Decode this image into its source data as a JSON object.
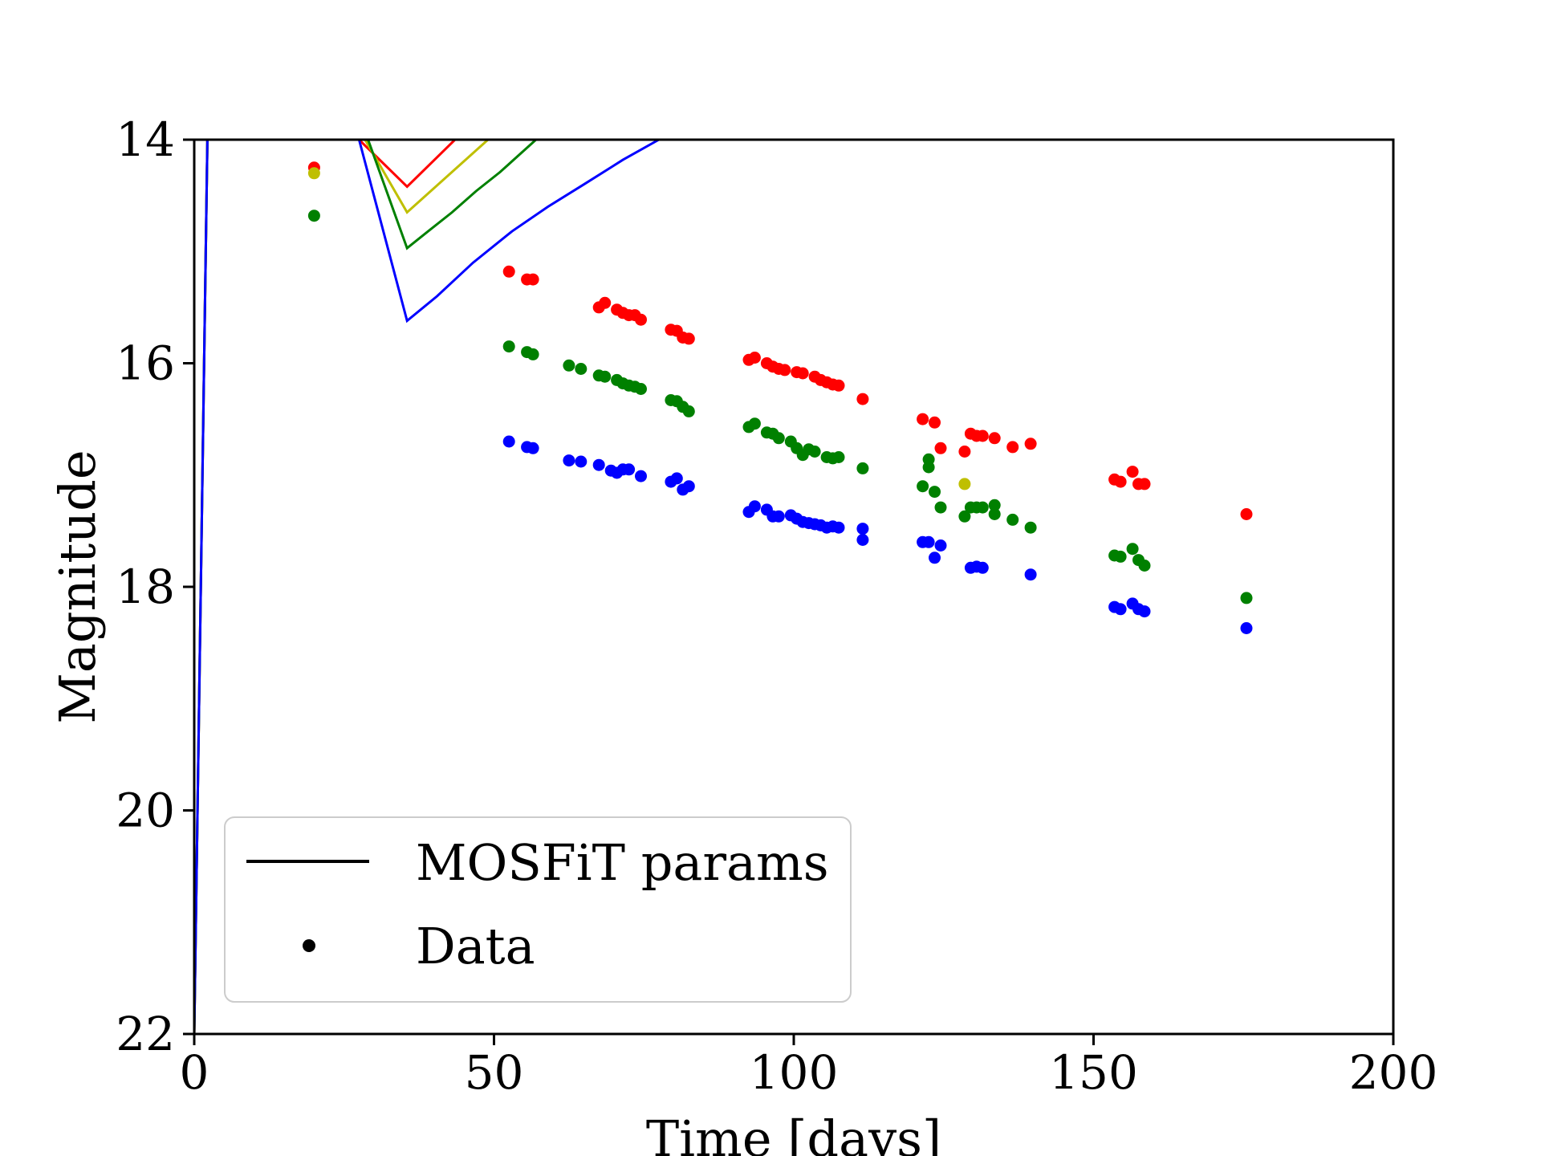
{
  "chart_data": {
    "type": "scatter",
    "title": "",
    "xlabel": "Time [days]",
    "ylabel": "Magnitude",
    "xlim": [
      0,
      200
    ],
    "ylim": [
      22,
      14
    ],
    "y_inverted": true,
    "x_ticks": [
      "0",
      "50",
      "100",
      "150",
      "200"
    ],
    "y_ticks": [
      "14",
      "16",
      "18",
      "20",
      "22"
    ],
    "grid": false,
    "legend": {
      "placement": "lower-left",
      "entries": [
        {
          "label": "MOSFiT params",
          "marker": "line"
        },
        {
          "label": "Data",
          "marker": "dot"
        }
      ]
    },
    "series_colors": {
      "red": "#ff0000",
      "green": "#008000",
      "blue": "#0000ff",
      "yellow": "#bfbf00"
    },
    "model_lines": [
      {
        "color": "red",
        "x": [
          0,
          2.2,
          27.5,
          35.5,
          43.5
        ],
        "y": [
          22,
          14,
          14,
          14.42,
          14
        ]
      },
      {
        "color": "yellow",
        "x": [
          0,
          2.2,
          28.5,
          35.5,
          49
        ],
        "y": [
          22,
          14,
          14,
          14.65,
          14
        ]
      },
      {
        "color": "green",
        "x": [
          0,
          2.2,
          29,
          35.5,
          39,
          43,
          47,
          51,
          57
        ],
        "y": [
          22,
          14,
          14,
          14.97,
          14.82,
          14.65,
          14.46,
          14.29,
          14
        ]
      },
      {
        "color": "blue",
        "x": [
          0,
          2.2,
          27.5,
          35.5,
          40.5,
          46.5,
          53,
          59,
          65,
          71.5,
          77.5
        ],
        "y": [
          22,
          14,
          14,
          15.62,
          15.4,
          15.1,
          14.82,
          14.6,
          14.4,
          14.18,
          14
        ]
      }
    ],
    "points": [
      {
        "color": "red",
        "x": [
          20,
          52.5,
          55.5,
          56.5,
          67.5,
          68.5,
          70.5,
          71.5,
          72.5,
          73.5,
          74.5,
          79.5,
          80.5,
          81.5,
          82.5,
          92.5,
          93.5,
          95.5,
          96.5,
          97.5,
          98.5,
          100.5,
          101.5,
          103.5,
          104.5,
          105.5,
          106.5,
          107.5,
          111.5,
          121.5,
          123.5,
          124.5,
          128.5,
          129.5,
          130.5,
          131.5,
          133.5,
          136.5,
          139.5,
          153.5,
          154.5,
          156.5,
          157.5,
          158.5,
          175.5
        ],
        "y": [
          14.25,
          15.18,
          15.25,
          15.25,
          15.5,
          15.46,
          15.52,
          15.55,
          15.57,
          15.57,
          15.61,
          15.7,
          15.71,
          15.77,
          15.78,
          15.97,
          15.95,
          16.0,
          16.03,
          16.05,
          16.06,
          16.08,
          16.09,
          16.12,
          16.15,
          16.17,
          16.19,
          16.2,
          16.32,
          16.5,
          16.53,
          16.76,
          16.79,
          16.63,
          16.65,
          16.65,
          16.67,
          16.75,
          16.72,
          17.04,
          17.06,
          16.97,
          17.08,
          17.08,
          17.35
        ]
      },
      {
        "color": "green",
        "x": [
          20,
          52.5,
          55.5,
          56.5,
          62.5,
          64.5,
          67.5,
          68.5,
          70.5,
          71.5,
          72.5,
          73.5,
          74.5,
          79.5,
          80.5,
          81.5,
          82.5,
          92.5,
          93.5,
          95.5,
          96.5,
          97.5,
          99.5,
          100.5,
          101.5,
          102.5,
          103.5,
          105.5,
          106.5,
          107.5,
          111.5,
          121.5,
          122.5,
          122.5,
          123.5,
          124.5,
          128.5,
          129.5,
          130.5,
          131.5,
          133.5,
          133.5,
          136.5,
          139.5,
          153.5,
          154.5,
          156.5,
          157.5,
          158.5,
          175.5
        ],
        "y": [
          14.68,
          15.85,
          15.9,
          15.92,
          16.02,
          16.05,
          16.11,
          16.12,
          16.15,
          16.18,
          16.2,
          16.21,
          16.23,
          16.33,
          16.34,
          16.39,
          16.43,
          16.57,
          16.54,
          16.62,
          16.63,
          16.67,
          16.7,
          16.76,
          16.82,
          16.77,
          16.79,
          16.84,
          16.85,
          16.84,
          16.94,
          17.1,
          16.93,
          16.86,
          17.15,
          17.29,
          17.37,
          17.29,
          17.29,
          17.29,
          17.27,
          17.35,
          17.4,
          17.47,
          17.72,
          17.73,
          17.66,
          17.76,
          17.81,
          18.1
        ]
      },
      {
        "color": "blue",
        "x": [
          52.5,
          55.5,
          56.5,
          62.5,
          64.5,
          67.5,
          69.5,
          70.5,
          71.5,
          72.5,
          74.5,
          79.5,
          80.5,
          81.5,
          82.5,
          92.5,
          93.5,
          95.5,
          96.5,
          97.5,
          99.5,
          100.5,
          101.5,
          102.5,
          103.5,
          104.5,
          105.5,
          106.5,
          107.5,
          111.5,
          111.5,
          121.5,
          122.5,
          123.5,
          124.5,
          129.5,
          130.5,
          131.5,
          139.5,
          153.5,
          154.5,
          156.5,
          157.5,
          158.5,
          175.5
        ],
        "y": [
          16.7,
          16.75,
          16.76,
          16.87,
          16.88,
          16.91,
          16.96,
          16.98,
          16.95,
          16.95,
          17.01,
          17.06,
          17.03,
          17.13,
          17.1,
          17.33,
          17.28,
          17.31,
          17.37,
          17.37,
          17.36,
          17.39,
          17.42,
          17.43,
          17.44,
          17.45,
          17.47,
          17.46,
          17.47,
          17.48,
          17.58,
          17.6,
          17.6,
          17.74,
          17.63,
          17.83,
          17.82,
          17.83,
          17.89,
          18.18,
          18.2,
          18.15,
          18.2,
          18.22,
          18.37
        ]
      },
      {
        "color": "yellow",
        "x": [
          20,
          128.5
        ],
        "y": [
          14.3,
          17.08
        ]
      }
    ]
  }
}
